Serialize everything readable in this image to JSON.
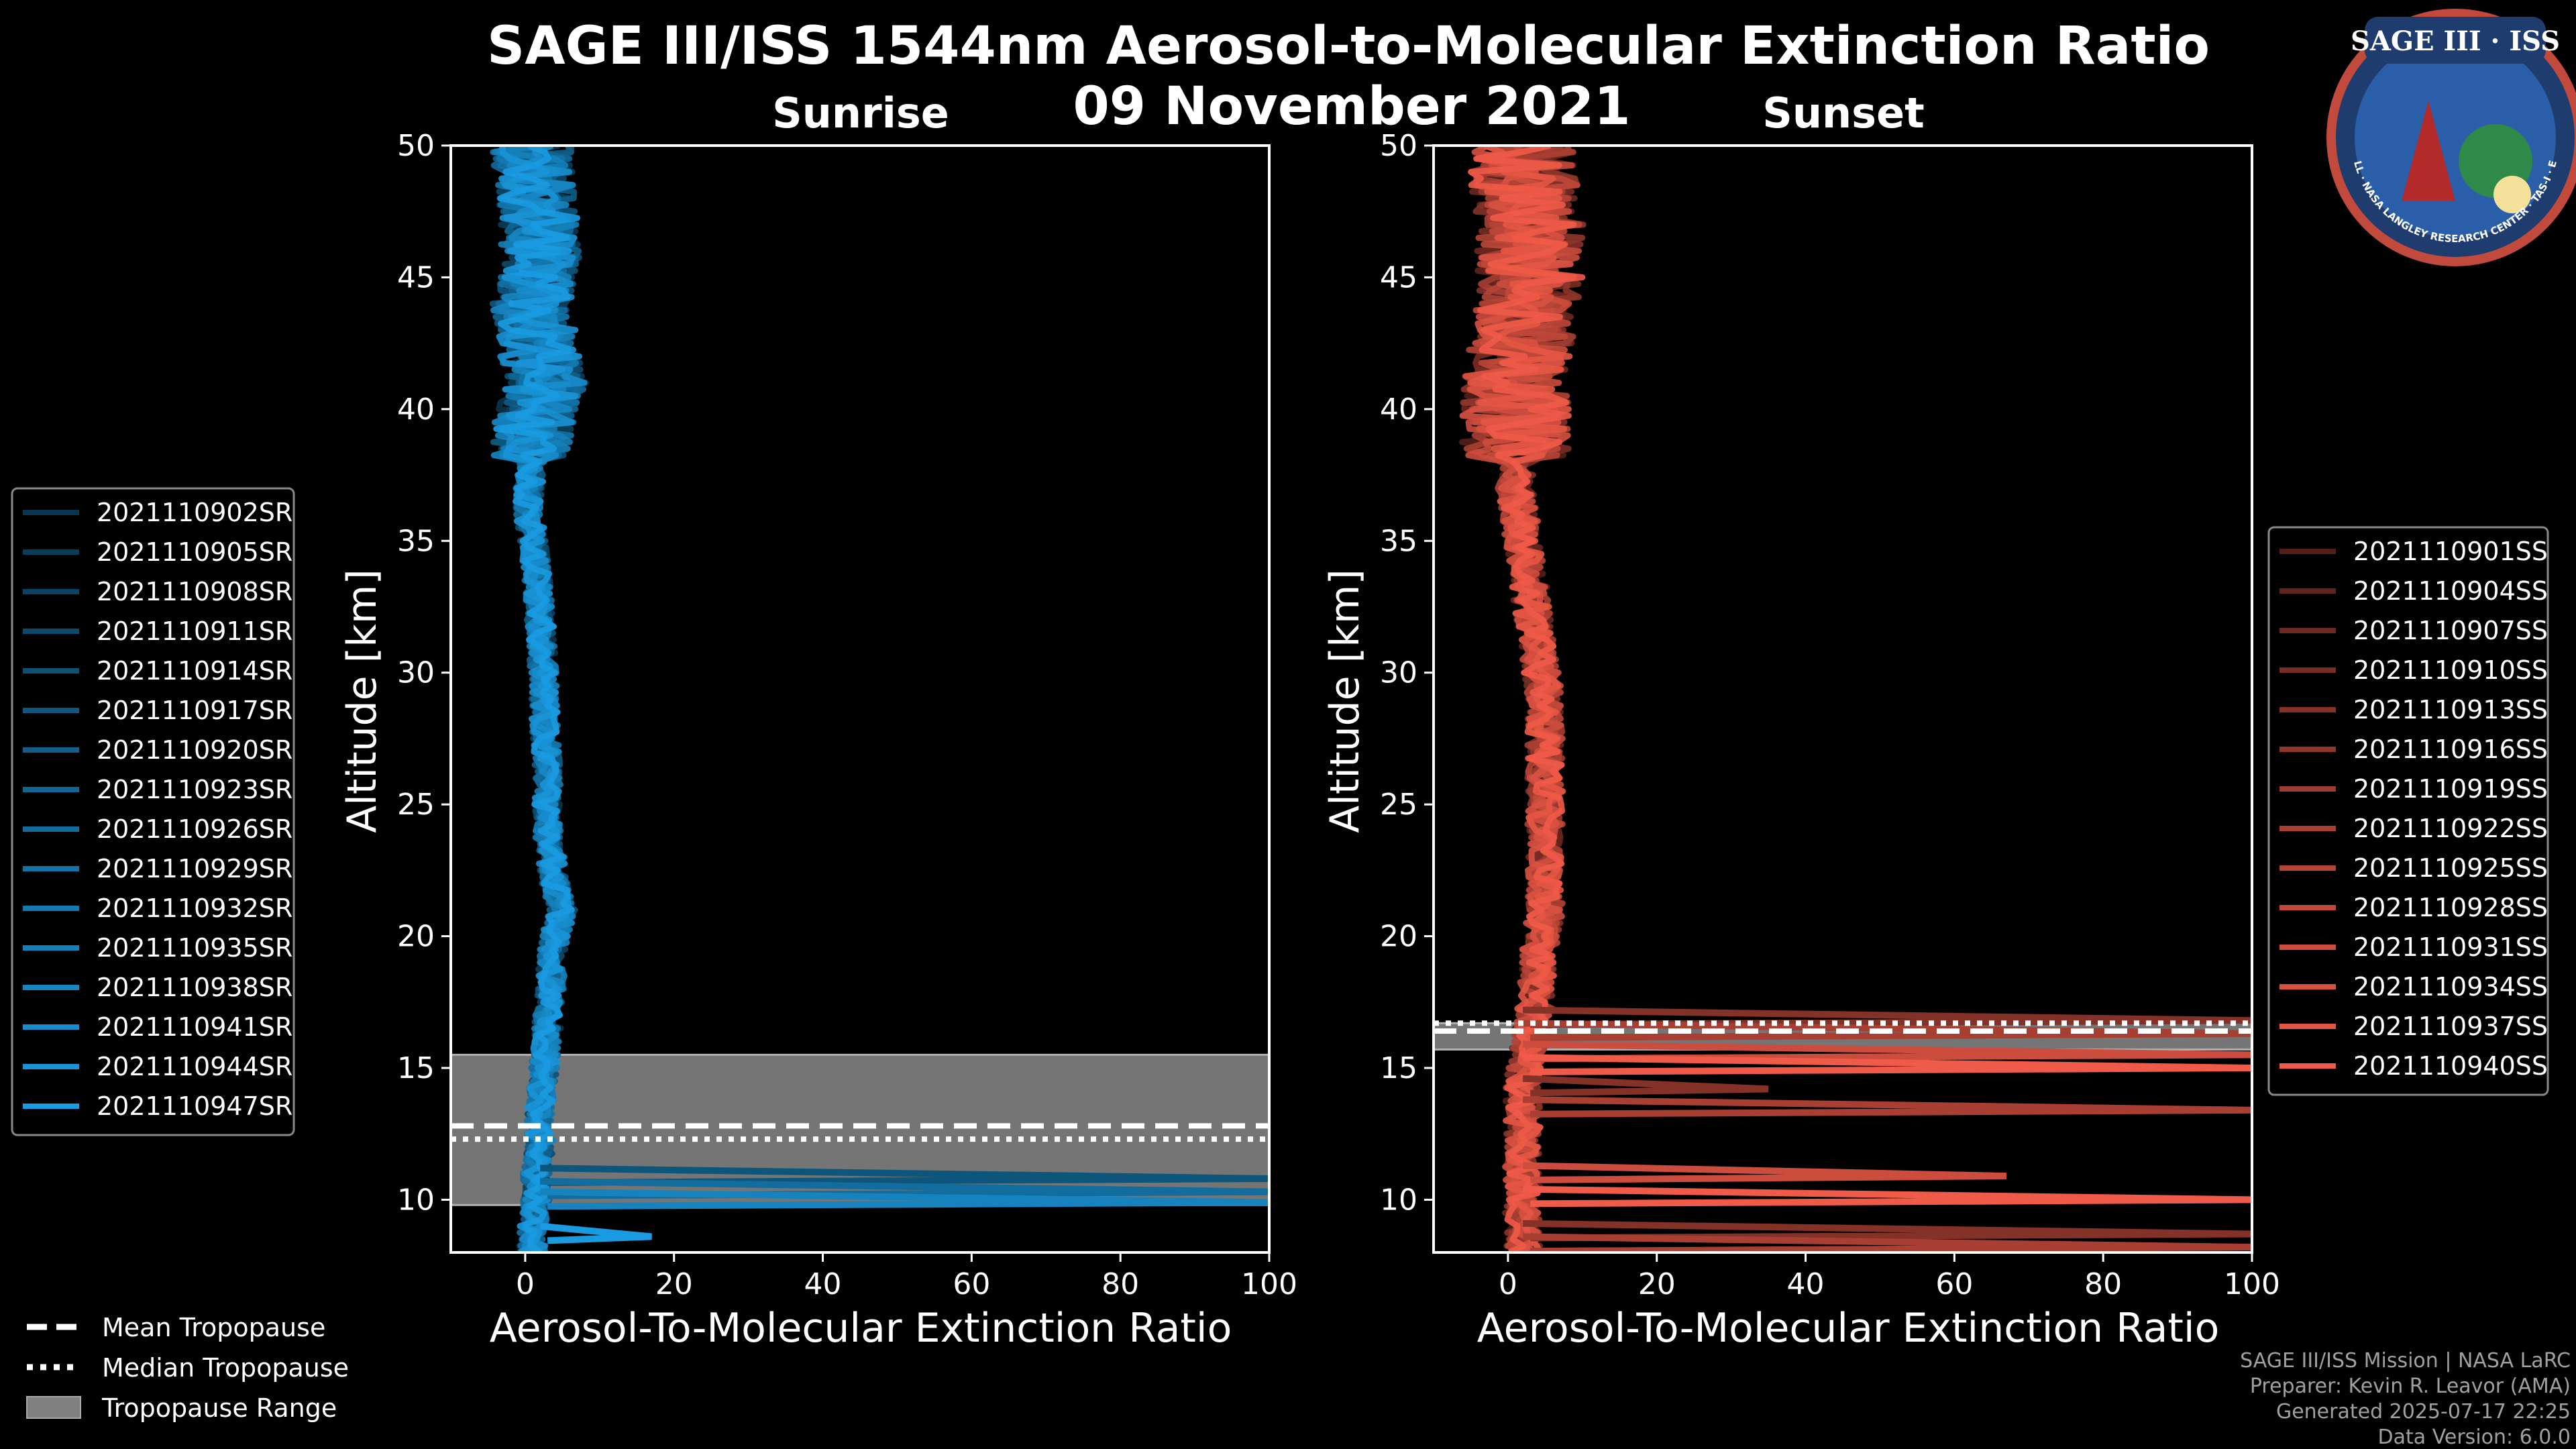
{
  "title": "SAGE III/ISS 1544nm Aerosol-to-Molecular Extinction Ratio",
  "date": "09 November 2021",
  "logo": {
    "text": "SAGE III · ISS",
    "ring_text": "BALL · NASA LANGLEY RESEARCH CENTER · TAS-I · ESA"
  },
  "footer": [
    "SAGE III/ISS Mission | NASA LaRC",
    "Preparer: Kevin R. Leavor (AMA)",
    "Generated 2025-07-17 22:25",
    "Data Version: 6.0.0"
  ],
  "common_legend": [
    {
      "label": "Mean Tropopause",
      "style": "dashed"
    },
    {
      "label": "Median Tropopause",
      "style": "dotted"
    },
    {
      "label": "Tropopause Range",
      "style": "patch"
    }
  ],
  "chart_data": [
    {
      "type": "line",
      "subtitle": "Sunrise",
      "xlabel": "Aerosol-To-Molecular Extinction Ratio",
      "ylabel": "Altitude [km]",
      "xlim": [
        -10,
        100
      ],
      "ylim": [
        8,
        50
      ],
      "xticks": [
        0,
        20,
        40,
        60,
        80,
        100
      ],
      "yticks": [
        10,
        15,
        20,
        25,
        30,
        35,
        40,
        45,
        50
      ],
      "color": "#1a9ae0",
      "tropopause": {
        "range": [
          9.8,
          15.5
        ],
        "mean": 12.8,
        "median": 12.3
      },
      "legend": [
        "2021110902SR",
        "2021110905SR",
        "2021110908SR",
        "2021110911SR",
        "2021110914SR",
        "2021110917SR",
        "2021110920SR",
        "2021110923SR",
        "2021110926SR",
        "2021110929SR",
        "2021110932SR",
        "2021110935SR",
        "2021110938SR",
        "2021110941SR",
        "2021110944SR",
        "2021110947SR"
      ],
      "profile": {
        "altitude": [
          8,
          9,
          10,
          11,
          12,
          13,
          14,
          15,
          16,
          17,
          18,
          19,
          20,
          21,
          22,
          23,
          24,
          25,
          26,
          27,
          28,
          29,
          30,
          31,
          32,
          33,
          34,
          35,
          36,
          37,
          38,
          39,
          40,
          41,
          42,
          43,
          44,
          45,
          46,
          47,
          48,
          49,
          50
        ],
        "ratio": [
          1,
          1,
          1.5,
          1.5,
          2,
          2,
          2,
          2.5,
          3,
          3,
          3.5,
          3.5,
          4,
          5,
          4,
          3.5,
          3,
          3,
          3,
          2.8,
          2.6,
          2.5,
          2.5,
          2.2,
          2,
          1.8,
          1.5,
          1,
          0.5,
          0.5,
          1,
          1,
          1.5,
          3,
          2,
          1.5,
          1,
          1.5,
          2,
          2,
          1.5,
          1,
          1
        ]
      },
      "spread": 3,
      "outliers": [
        {
          "alt": 10.8,
          "ratio": 100
        },
        {
          "alt": 10.3,
          "ratio": 100
        },
        {
          "alt": 9.9,
          "ratio": 100
        },
        {
          "alt": 8.6,
          "ratio": 17
        }
      ]
    },
    {
      "type": "line",
      "subtitle": "Sunset",
      "xlabel": "Aerosol-To-Molecular Extinction Ratio",
      "ylabel": "Altitude [km]",
      "xlim": [
        -10,
        100
      ],
      "ylim": [
        8,
        50
      ],
      "xticks": [
        0,
        20,
        40,
        60,
        80,
        100
      ],
      "yticks": [
        10,
        15,
        20,
        25,
        30,
        35,
        40,
        45,
        50
      ],
      "color": "#f05a48",
      "tropopause": {
        "range": [
          15.7,
          16.7
        ],
        "mean": 16.4,
        "median": 16.7
      },
      "legend": [
        "2021110901SS",
        "2021110904SS",
        "2021110907SS",
        "2021110910SS",
        "2021110913SS",
        "2021110916SS",
        "2021110919SS",
        "2021110922SS",
        "2021110925SS",
        "2021110928SS",
        "2021110931SS",
        "2021110934SS",
        "2021110937SS",
        "2021110940SS"
      ],
      "profile": {
        "altitude": [
          8,
          9,
          10,
          11,
          12,
          13,
          14,
          15,
          16,
          17,
          18,
          19,
          20,
          21,
          22,
          23,
          24,
          25,
          26,
          27,
          28,
          29,
          30,
          31,
          32,
          33,
          34,
          35,
          36,
          37,
          38,
          39,
          40,
          41,
          42,
          43,
          44,
          45,
          46,
          47,
          48,
          49,
          50
        ],
        "ratio": [
          2,
          2,
          2,
          2,
          2,
          2,
          2,
          2,
          3,
          3.5,
          4,
          4,
          4.5,
          5,
          5,
          5,
          5,
          5,
          5,
          5,
          5,
          5,
          4.5,
          4,
          3.5,
          3,
          2.5,
          2,
          1.5,
          1,
          1,
          1,
          1,
          1,
          1.5,
          2,
          2.5,
          3,
          3,
          3,
          2.5,
          2,
          2
        ]
      },
      "spread": 4,
      "outliers": [
        {
          "alt": 16.8,
          "ratio": 100
        },
        {
          "alt": 16.3,
          "ratio": 100
        },
        {
          "alt": 15.5,
          "ratio": 100
        },
        {
          "alt": 15.0,
          "ratio": 100
        },
        {
          "alt": 14.2,
          "ratio": 35
        },
        {
          "alt": 13.4,
          "ratio": 100
        },
        {
          "alt": 10.9,
          "ratio": 67
        },
        {
          "alt": 10.0,
          "ratio": 100
        },
        {
          "alt": 8.7,
          "ratio": 100
        },
        {
          "alt": 8.2,
          "ratio": 100
        }
      ]
    }
  ]
}
